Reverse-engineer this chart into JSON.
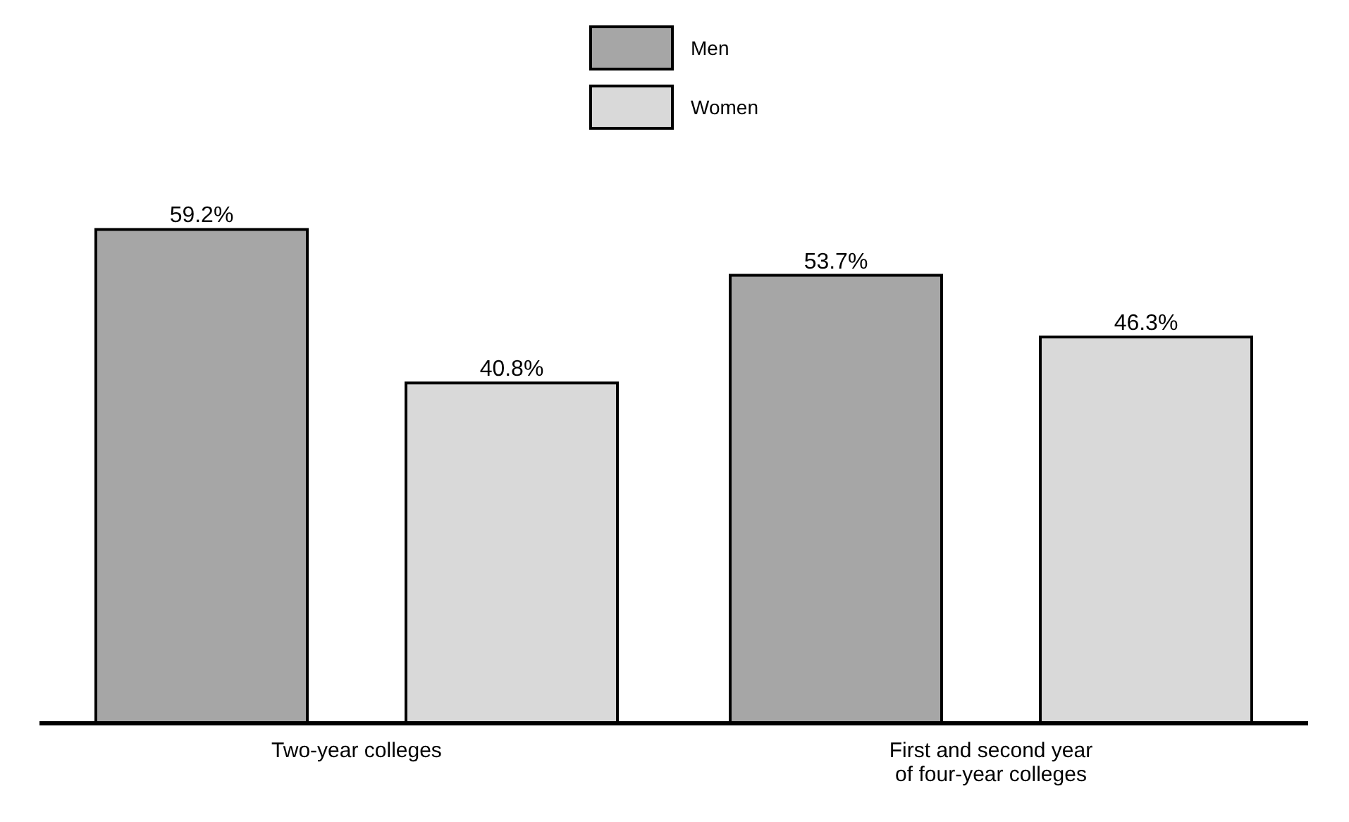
{
  "chart_data": {
    "type": "bar",
    "categories": [
      "Two-year colleges",
      "First and second year of four-year colleges"
    ],
    "series": [
      {
        "name": "Men",
        "color": "#a6a6a6",
        "values": [
          59.2,
          53.7
        ],
        "value_labels": [
          "59.2%",
          "53.7%"
        ]
      },
      {
        "name": "Women",
        "color": "#d9d9d9",
        "values": [
          40.8,
          46.3
        ],
        "value_labels": [
          "40.8%",
          "46.3%"
        ]
      }
    ],
    "legend": "top",
    "grid": false
  }
}
